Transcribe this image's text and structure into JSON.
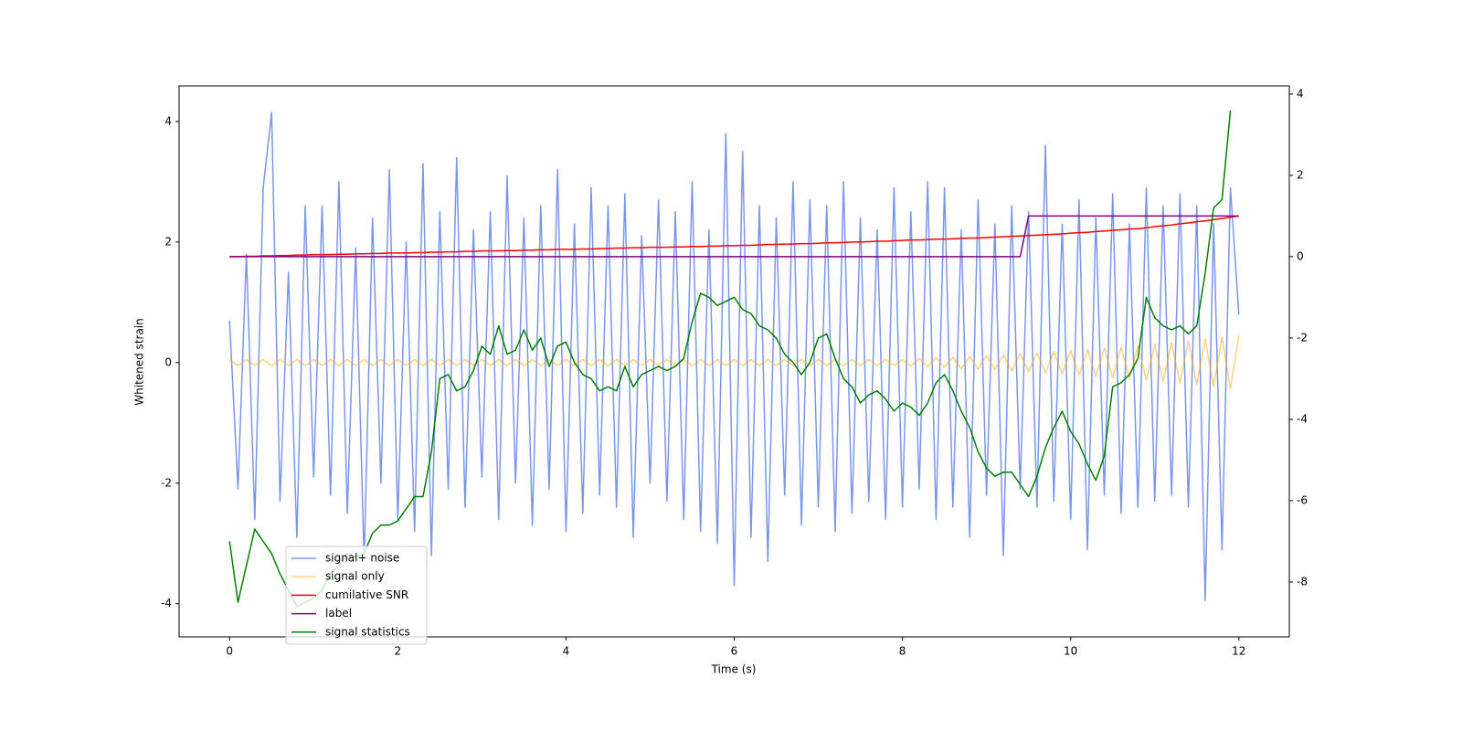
{
  "chart_data": {
    "type": "line",
    "xlabel": "Time (s)",
    "ylabel": "Whitened strain",
    "x": [
      0,
      0.1,
      0.2,
      0.3,
      0.4,
      0.5,
      0.6,
      0.7,
      0.8,
      0.9,
      1,
      1.1,
      1.2,
      1.3,
      1.4,
      1.5,
      1.6,
      1.7,
      1.8,
      1.9,
      2,
      2.1,
      2.2,
      2.3,
      2.4,
      2.5,
      2.6,
      2.7,
      2.8,
      2.9,
      3,
      3.1,
      3.2,
      3.3,
      3.4,
      3.5,
      3.6,
      3.7,
      3.8,
      3.9,
      4,
      4.1,
      4.2,
      4.3,
      4.4,
      4.5,
      4.6,
      4.7,
      4.8,
      4.9,
      5,
      5.1,
      5.2,
      5.3,
      5.4,
      5.5,
      5.6,
      5.7,
      5.8,
      5.9,
      6,
      6.1,
      6.2,
      6.3,
      6.4,
      6.5,
      6.6,
      6.7,
      6.8,
      6.9,
      7,
      7.1,
      7.2,
      7.3,
      7.4,
      7.5,
      7.6,
      7.7,
      7.8,
      7.9,
      8,
      8.1,
      8.2,
      8.3,
      8.4,
      8.5,
      8.6,
      8.7,
      8.8,
      8.9,
      9,
      9.1,
      9.2,
      9.3,
      9.4,
      9.5,
      9.6,
      9.7,
      9.8,
      9.9,
      10,
      10.1,
      10.2,
      10.3,
      10.4,
      10.5,
      10.6,
      10.7,
      10.8,
      10.9,
      11,
      11.1,
      11.2,
      11.3,
      11.4,
      11.5,
      11.6,
      11.7,
      11.8,
      11.9,
      12
    ],
    "series": [
      {
        "name": "signal+ noise",
        "color": "royalblue",
        "alpha": 0.7,
        "axis": "y",
        "values": [
          0.7,
          -2.1,
          1.8,
          -2.6,
          2.9,
          4.15,
          -2.3,
          1.5,
          -2.9,
          2.6,
          -1.9,
          2.6,
          -2.2,
          3.0,
          -2.5,
          1.9,
          -3.3,
          2.4,
          -2.0,
          3.2,
          -2.6,
          2.0,
          -2.8,
          3.3,
          -3.2,
          2.5,
          -2.1,
          3.4,
          -2.4,
          2.2,
          -1.9,
          2.5,
          -2.6,
          3.1,
          -2.0,
          2.4,
          -2.7,
          2.6,
          -2.1,
          3.2,
          -2.8,
          2.3,
          -2.5,
          2.9,
          -2.2,
          2.6,
          -2.4,
          2.8,
          -2.9,
          2.1,
          -2.0,
          2.7,
          -2.3,
          2.5,
          -2.6,
          3.0,
          -2.8,
          2.2,
          -3.0,
          3.8,
          -3.7,
          3.5,
          -2.9,
          2.6,
          -3.3,
          2.4,
          -2.2,
          3.0,
          -2.7,
          2.7,
          -2.4,
          2.6,
          -2.8,
          3.0,
          -2.5,
          2.4,
          -2.3,
          2.2,
          -2.6,
          2.9,
          -2.4,
          2.5,
          -2.1,
          3.0,
          -2.6,
          2.9,
          -2.4,
          2.2,
          -2.9,
          2.7,
          -2.2,
          2.3,
          -3.2,
          2.6,
          -2.1,
          2.5,
          -2.4,
          3.6,
          -2.3,
          2.3,
          -2.6,
          2.7,
          -3.1,
          2.4,
          -2.2,
          2.8,
          -2.5,
          2.3,
          -2.4,
          2.9,
          -2.3,
          2.6,
          -2.2,
          2.8,
          -2.4,
          2.6,
          -3.95,
          2.3,
          -3.1,
          2.9,
          0.8
        ]
      },
      {
        "name": "signal only",
        "color": "orange",
        "alpha": 0.5,
        "axis": "y",
        "values": [
          0.05,
          -0.05,
          0.05,
          -0.05,
          0.05,
          -0.05,
          0.05,
          -0.05,
          0.05,
          -0.05,
          0.05,
          -0.05,
          0.05,
          -0.05,
          0.05,
          -0.05,
          0.05,
          -0.05,
          0.05,
          -0.05,
          0.05,
          -0.05,
          0.05,
          -0.05,
          0.05,
          -0.05,
          0.05,
          -0.05,
          0.05,
          -0.05,
          0.05,
          -0.05,
          0.05,
          -0.05,
          0.05,
          -0.05,
          0.05,
          -0.05,
          0.05,
          -0.05,
          0.05,
          -0.05,
          0.05,
          -0.05,
          0.05,
          -0.05,
          0.05,
          -0.05,
          0.05,
          -0.05,
          0.05,
          -0.05,
          0.05,
          -0.05,
          0.05,
          -0.05,
          0.05,
          -0.05,
          0.05,
          -0.05,
          0.05,
          -0.05,
          0.05,
          -0.05,
          0.05,
          -0.05,
          0.05,
          -0.05,
          0.05,
          -0.05,
          0.05,
          -0.05,
          0.05,
          -0.05,
          0.05,
          -0.05,
          0.05,
          -0.05,
          0.05,
          -0.05,
          0.05,
          -0.06,
          0.07,
          -0.07,
          0.08,
          -0.08,
          0.09,
          -0.1,
          0.1,
          -0.11,
          0.12,
          -0.12,
          0.13,
          -0.14,
          0.15,
          -0.15,
          0.16,
          -0.17,
          0.18,
          -0.19,
          0.2,
          -0.21,
          0.22,
          -0.23,
          0.24,
          -0.25,
          0.26,
          -0.27,
          0.28,
          -0.29,
          0.3,
          -0.31,
          0.33,
          -0.34,
          0.36,
          -0.37,
          0.39,
          -0.4,
          0.42,
          -0.43,
          0.45
        ]
      },
      {
        "name": "cumilative SNR",
        "color": "red",
        "alpha": 1,
        "axis": "y2",
        "values": [
          0,
          0,
          0.01,
          0.01,
          0.02,
          0.02,
          0.03,
          0.03,
          0.04,
          0.04,
          0.05,
          0.05,
          0.05,
          0.06,
          0.06,
          0.07,
          0.07,
          0.08,
          0.08,
          0.09,
          0.09,
          0.09,
          0.1,
          0.1,
          0.11,
          0.11,
          0.12,
          0.12,
          0.13,
          0.13,
          0.14,
          0.14,
          0.14,
          0.15,
          0.15,
          0.16,
          0.16,
          0.17,
          0.17,
          0.18,
          0.18,
          0.18,
          0.19,
          0.19,
          0.2,
          0.2,
          0.21,
          0.21,
          0.22,
          0.22,
          0.23,
          0.23,
          0.23,
          0.24,
          0.24,
          0.25,
          0.25,
          0.26,
          0.26,
          0.27,
          0.27,
          0.28,
          0.28,
          0.29,
          0.3,
          0.3,
          0.31,
          0.31,
          0.32,
          0.32,
          0.33,
          0.34,
          0.34,
          0.35,
          0.36,
          0.36,
          0.37,
          0.38,
          0.38,
          0.39,
          0.4,
          0.41,
          0.41,
          0.42,
          0.43,
          0.43,
          0.44,
          0.45,
          0.46,
          0.46,
          0.47,
          0.48,
          0.49,
          0.5,
          0.51,
          0.52,
          0.53,
          0.54,
          0.55,
          0.56,
          0.58,
          0.59,
          0.6,
          0.62,
          0.63,
          0.65,
          0.66,
          0.68,
          0.69,
          0.71,
          0.74,
          0.76,
          0.78,
          0.81,
          0.83,
          0.86,
          0.88,
          0.91,
          0.94,
          0.97,
          1
        ]
      },
      {
        "name": "label",
        "color": "purple",
        "alpha": 1,
        "axis": "y2",
        "values": [
          0,
          0,
          0,
          0,
          0,
          0,
          0,
          0,
          0,
          0,
          0,
          0,
          0,
          0,
          0,
          0,
          0,
          0,
          0,
          0,
          0,
          0,
          0,
          0,
          0,
          0,
          0,
          0,
          0,
          0,
          0,
          0,
          0,
          0,
          0,
          0,
          0,
          0,
          0,
          0,
          0,
          0,
          0,
          0,
          0,
          0,
          0,
          0,
          0,
          0,
          0,
          0,
          0,
          0,
          0,
          0,
          0,
          0,
          0,
          0,
          0,
          0,
          0,
          0,
          0,
          0,
          0,
          0,
          0,
          0,
          0,
          0,
          0,
          0,
          0,
          0,
          0,
          0,
          0,
          0,
          0,
          0,
          0,
          0,
          0,
          0,
          0,
          0,
          0,
          0,
          0,
          0,
          0,
          0,
          0,
          1,
          1,
          1,
          1,
          1,
          1,
          1,
          1,
          1,
          1,
          1,
          1,
          1,
          1,
          1,
          1,
          1,
          1,
          1,
          1,
          1,
          1,
          1,
          1,
          1,
          1
        ]
      },
      {
        "name": "signal statistics",
        "color": "green",
        "alpha": 1,
        "axis": "y2",
        "values": [
          -7.0,
          -8.5,
          -7.6,
          -6.7,
          -7.0,
          -7.3,
          -7.8,
          -8.2,
          -8.6,
          -8.5,
          -8.4,
          -8.2,
          -7.8,
          -7.6,
          -7.3,
          -7.4,
          -7.3,
          -6.8,
          -6.6,
          -6.6,
          -6.5,
          -6.2,
          -5.9,
          -5.9,
          -4.8,
          -3.0,
          -2.9,
          -3.3,
          -3.2,
          -2.8,
          -2.2,
          -2.4,
          -1.7,
          -2.4,
          -2.3,
          -1.8,
          -2.3,
          -2.0,
          -2.7,
          -2.2,
          -2.1,
          -2.6,
          -2.9,
          -3.0,
          -3.3,
          -3.2,
          -3.3,
          -2.7,
          -3.2,
          -2.9,
          -2.8,
          -2.7,
          -2.8,
          -2.7,
          -2.5,
          -1.6,
          -0.9,
          -1.0,
          -1.2,
          -1.1,
          -1.0,
          -1.3,
          -1.4,
          -1.7,
          -1.8,
          -2.0,
          -2.4,
          -2.6,
          -2.9,
          -2.6,
          -2.0,
          -1.9,
          -2.5,
          -3.0,
          -3.2,
          -3.6,
          -3.4,
          -3.3,
          -3.5,
          -3.8,
          -3.6,
          -3.7,
          -3.9,
          -3.6,
          -3.1,
          -2.9,
          -3.3,
          -3.8,
          -4.2,
          -4.8,
          -5.2,
          -5.4,
          -5.3,
          -5.3,
          -5.6,
          -5.9,
          -5.4,
          -4.7,
          -4.2,
          -3.8,
          -4.3,
          -4.6,
          -5.1,
          -5.5,
          -4.9,
          -3.2,
          -3.1,
          -2.9,
          -2.5,
          -1.0,
          -1.5,
          -1.7,
          -1.8,
          -1.7,
          -1.9,
          -1.7,
          -0.4,
          1.2,
          1.4,
          3.6,
          null
        ]
      }
    ],
    "xlim": [
      -0.6,
      12.6
    ],
    "xticks": [
      0,
      2,
      4,
      6,
      8,
      10,
      12
    ],
    "ylim": [
      -4.55,
      4.59
    ],
    "yticks": [
      -4,
      -2,
      0,
      2,
      4
    ],
    "y2lim": [
      -9.35,
      4.2
    ],
    "y2ticks": [
      -8,
      -6,
      -4,
      -2,
      0,
      2,
      4
    ],
    "grid": false,
    "legend": "lower left"
  }
}
